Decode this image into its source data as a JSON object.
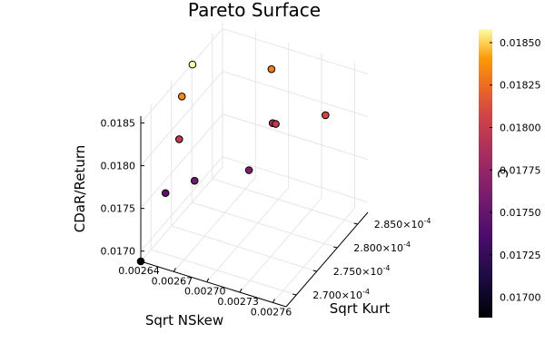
{
  "chart_data": {
    "type": "scatter",
    "title": "Pareto Surface",
    "xlabel": "Sqrt NSkew",
    "ylabel": "Sqrt Kurt",
    "zlabel": "CDaR/Return",
    "colorbar_label": "C",
    "colormap": "inferno",
    "x_ticks": [
      "0.00264",
      "0.00267",
      "0.00270",
      "0.00273",
      "0.00276"
    ],
    "y_ticks": [
      {
        "mantissa": "2.700",
        "exponent": "-4"
      },
      {
        "mantissa": "2.750",
        "exponent": "-4"
      },
      {
        "mantissa": "2.800",
        "exponent": "-4"
      },
      {
        "mantissa": "2.850",
        "exponent": "-4"
      }
    ],
    "z_ticks": [
      "0.0170",
      "0.0175",
      "0.0180",
      "0.0185"
    ],
    "colorbar_ticks": [
      "0.01700",
      "0.01725",
      "0.01750",
      "0.01775",
      "0.01800",
      "0.01825",
      "0.01850"
    ],
    "zlim": [
      0.01688,
      0.01858
    ],
    "grid": true,
    "points": [
      {
        "x": 0.00264,
        "y": 0.0002675,
        "z": 0.01688
      },
      {
        "x": 0.002645,
        "y": 0.0002722,
        "z": 0.01744
      },
      {
        "x": 0.002664,
        "y": 0.0002742,
        "z": 0.01755
      },
      {
        "x": 0.00265,
        "y": 0.0002742,
        "z": 0.01798
      },
      {
        "x": 0.002645,
        "y": 0.0002762,
        "z": 0.01835
      },
      {
        "x": 0.002645,
        "y": 0.0002788,
        "z": 0.01858
      },
      {
        "x": 0.0027,
        "y": 0.0002778,
        "z": 0.01762
      },
      {
        "x": 0.0027,
        "y": 0.0002836,
        "z": 0.01785
      },
      {
        "x": 0.002708,
        "y": 0.0002822,
        "z": 0.01795
      },
      {
        "x": 0.00269,
        "y": 0.000286,
        "z": 0.01831
      },
      {
        "x": 0.002745,
        "y": 0.0002844,
        "z": 0.01808
      }
    ]
  }
}
